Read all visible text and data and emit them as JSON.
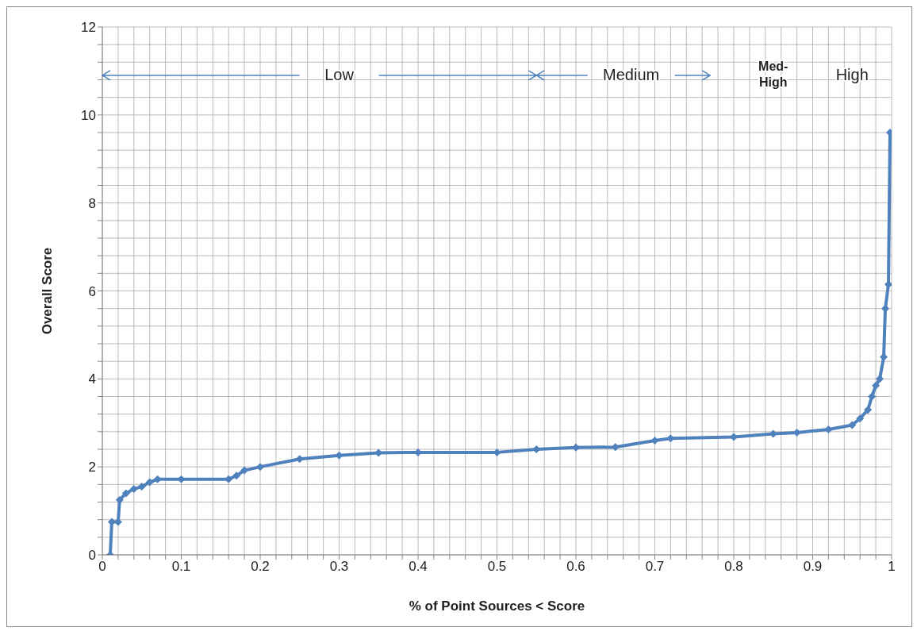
{
  "chart_data": {
    "type": "line",
    "xlabel": "% of Point Sources < Score",
    "ylabel": "Overall Score",
    "x": [
      0.01,
      0.012,
      0.02,
      0.022,
      0.03,
      0.04,
      0.05,
      0.06,
      0.07,
      0.1,
      0.16,
      0.17,
      0.18,
      0.2,
      0.25,
      0.3,
      0.35,
      0.4,
      0.5,
      0.55,
      0.6,
      0.65,
      0.7,
      0.72,
      0.8,
      0.85,
      0.88,
      0.92,
      0.95,
      0.96,
      0.97,
      0.975,
      0.98,
      0.985,
      0.99,
      0.992,
      0.996,
      0.998
    ],
    "series": [
      {
        "color": "#4f81bd",
        "values": [
          0.0,
          0.75,
          0.75,
          1.25,
          1.4,
          1.5,
          1.55,
          1.65,
          1.72,
          1.72,
          1.72,
          1.8,
          1.92,
          2.0,
          2.18,
          2.26,
          2.32,
          2.33,
          2.33,
          2.4,
          2.44,
          2.45,
          2.6,
          2.65,
          2.68,
          2.75,
          2.78,
          2.85,
          2.95,
          3.1,
          3.3,
          3.6,
          3.85,
          4.0,
          4.5,
          5.6,
          6.15,
          9.6
        ]
      }
    ],
    "xlim": [
      0,
      1
    ],
    "ylim": [
      0,
      12
    ],
    "xticks": [
      0,
      {
        "value": 0.02,
        "label": null
      },
      {
        "value": 0.04,
        "label": null
      },
      {
        "value": 0.06,
        "label": null
      },
      {
        "value": 0.08,
        "label": null
      },
      0.1,
      {
        "value": 0.12,
        "label": null
      },
      {
        "value": 0.14,
        "label": null
      },
      {
        "value": 0.16,
        "label": null
      },
      {
        "value": 0.18,
        "label": null
      },
      0.2,
      {
        "value": 0.22,
        "label": null
      },
      {
        "value": 0.24,
        "label": null
      },
      {
        "value": 0.26,
        "label": null
      },
      {
        "value": 0.28,
        "label": null
      },
      0.3,
      {
        "value": 0.32,
        "label": null
      },
      {
        "value": 0.34,
        "label": null
      },
      {
        "value": 0.36,
        "label": null
      },
      {
        "value": 0.38,
        "label": null
      },
      0.4,
      {
        "value": 0.42,
        "label": null
      },
      {
        "value": 0.44,
        "label": null
      },
      {
        "value": 0.46,
        "label": null
      },
      {
        "value": 0.48,
        "label": null
      },
      0.5,
      {
        "value": 0.52,
        "label": null
      },
      {
        "value": 0.54,
        "label": null
      },
      {
        "value": 0.56,
        "label": null
      },
      {
        "value": 0.58,
        "label": null
      },
      0.6,
      {
        "value": 0.62,
        "label": null
      },
      {
        "value": 0.64,
        "label": null
      },
      {
        "value": 0.66,
        "label": null
      },
      {
        "value": 0.68,
        "label": null
      },
      0.7,
      {
        "value": 0.72,
        "label": null
      },
      {
        "value": 0.74,
        "label": null
      },
      {
        "value": 0.76,
        "label": null
      },
      {
        "value": 0.78,
        "label": null
      },
      0.8,
      {
        "value": 0.82,
        "label": null
      },
      {
        "value": 0.84,
        "label": null
      },
      {
        "value": 0.86,
        "label": null
      },
      {
        "value": 0.88,
        "label": null
      },
      0.9,
      {
        "value": 0.92,
        "label": null
      },
      {
        "value": 0.94,
        "label": null
      },
      {
        "value": 0.96,
        "label": null
      },
      {
        "value": 0.98,
        "label": null
      },
      1
    ],
    "yticks": [
      0,
      {
        "value": 0.4,
        "label": null
      },
      {
        "value": 0.8,
        "label": null
      },
      {
        "value": 1.2,
        "label": null
      },
      {
        "value": 1.6,
        "label": null
      },
      2,
      {
        "value": 2.4,
        "label": null
      },
      {
        "value": 2.8,
        "label": null
      },
      {
        "value": 3.2,
        "label": null
      },
      {
        "value": 3.6,
        "label": null
      },
      4,
      {
        "value": 4.4,
        "label": null
      },
      {
        "value": 4.8,
        "label": null
      },
      {
        "value": 5.2,
        "label": null
      },
      {
        "value": 5.6,
        "label": null
      },
      6,
      {
        "value": 6.4,
        "label": null
      },
      {
        "value": 6.8,
        "label": null
      },
      {
        "value": 7.2,
        "label": null
      },
      {
        "value": 7.6,
        "label": null
      },
      8,
      {
        "value": 8.4,
        "label": null
      },
      {
        "value": 8.8,
        "label": null
      },
      {
        "value": 9.2,
        "label": null
      },
      {
        "value": 9.6,
        "label": null
      },
      10,
      {
        "value": 10.4,
        "label": null
      },
      {
        "value": 10.8,
        "label": null
      },
      {
        "value": 11.2,
        "label": null
      },
      {
        "value": 11.6,
        "label": null
      },
      12
    ],
    "grid": true,
    "marker": "diamond",
    "line_style": "solid",
    "legend": false,
    "annotations": [
      "Low",
      "Medium",
      "Med-High",
      "High"
    ]
  }
}
